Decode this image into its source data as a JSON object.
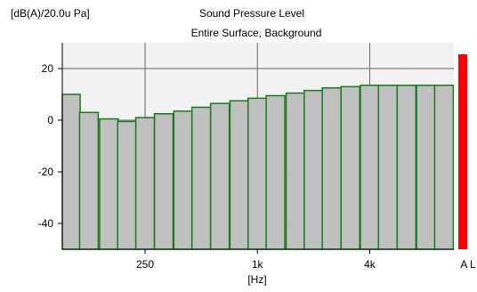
{
  "chart_data": {
    "type": "bar",
    "title": "Sound Pressure Level",
    "subtitle": "Entire Surface, Background",
    "ylabel": "[dB(A)/20.0u Pa]",
    "xlabel": "[Hz]",
    "ylim": [
      -50,
      30
    ],
    "yticks": [
      -40,
      -20,
      0,
      20
    ],
    "ytick_labels": [
      "-40",
      "-20",
      "0",
      "20"
    ],
    "x_scale": "log",
    "xlim_hz": [
      90,
      11300
    ],
    "xticks": [
      {
        "hz": 250,
        "label": "250"
      },
      {
        "hz": 1000,
        "label": "1k"
      },
      {
        "hz": 4000,
        "label": "4k"
      }
    ],
    "grid": true,
    "categories_hz": [
      100,
      125,
      160,
      200,
      250,
      315,
      400,
      500,
      630,
      800,
      1000,
      1250,
      1600,
      2000,
      2500,
      3150,
      4000,
      5000,
      6300,
      8000,
      10000
    ],
    "values": [
      10,
      3,
      0.5,
      -0.5,
      1,
      2.5,
      3.5,
      5,
      6.5,
      7.5,
      8.5,
      9.5,
      10.5,
      11.5,
      12.5,
      13,
      13.5,
      13.5,
      13.5,
      13.5,
      13.5
    ],
    "bar_fill": "#c0c0c0",
    "bar_stroke": "#1a7a1a",
    "plot_background": "#f2f2f2",
    "overall": {
      "label": "A L",
      "value": 25.5,
      "color": "#ff0000"
    }
  }
}
